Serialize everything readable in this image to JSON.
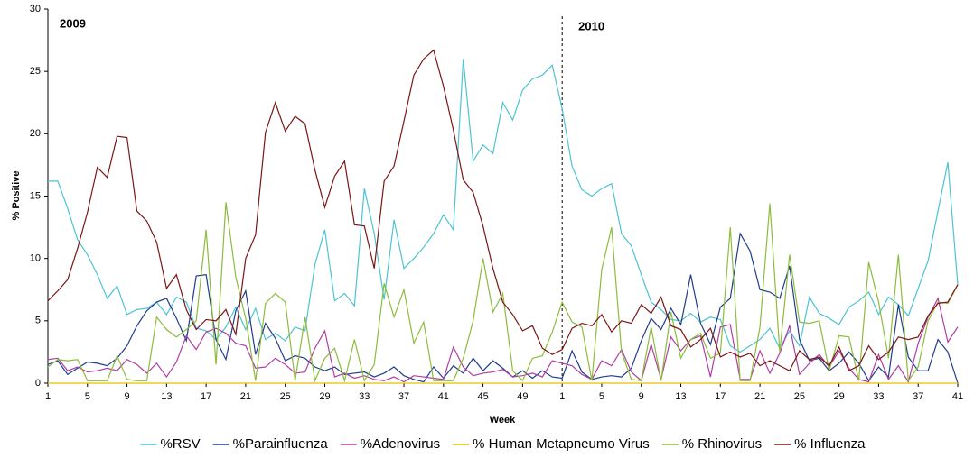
{
  "chart_data": {
    "type": "line",
    "ylabel": "% Positive",
    "xlabel": "Week",
    "annotations": [
      "2009",
      "2010"
    ],
    "categories": [
      1,
      null,
      null,
      null,
      5,
      null,
      null,
      null,
      9,
      null,
      null,
      null,
      13,
      null,
      null,
      null,
      17,
      null,
      null,
      null,
      21,
      null,
      null,
      null,
      25,
      null,
      null,
      null,
      29,
      null,
      null,
      null,
      33,
      null,
      null,
      null,
      37,
      null,
      null,
      null,
      41,
      null,
      null,
      null,
      45,
      null,
      null,
      null,
      49,
      null,
      null,
      null,
      1,
      null,
      null,
      null,
      5,
      null,
      null,
      null,
      9,
      null,
      null,
      null,
      13,
      null,
      null,
      null,
      17,
      null,
      null,
      null,
      21,
      null,
      null,
      null,
      25,
      null,
      null,
      null,
      29,
      null,
      null,
      null,
      33,
      null,
      null,
      null,
      37,
      null,
      null,
      null,
      41
    ],
    "ylim": [
      0,
      30
    ],
    "yticks": [
      0,
      5,
      10,
      15,
      20,
      25,
      30
    ],
    "grid": false,
    "series": [
      {
        "name": "%RSV",
        "color": "#4cc3d3",
        "values": [
          16.2,
          16.2,
          14,
          11.5,
          10.3,
          8.7,
          6.8,
          7.8,
          5.5,
          5.9,
          6.0,
          6.5,
          5.5,
          6.9,
          6.5,
          4.4,
          4.2,
          3.5,
          4.5,
          6.1,
          4.3,
          6.0,
          3.5,
          4.0,
          3.4,
          4.5,
          4.2,
          9.5,
          12.3,
          6.6,
          7.2,
          6.2,
          15.6,
          12.0,
          6.7,
          13.1,
          9.2,
          10.0,
          10.9,
          12.0,
          13.5,
          12.3,
          26.0,
          17.8,
          19.1,
          18.4,
          22.5,
          21.1,
          23.5,
          24.4,
          24.7,
          25.5,
          22.0,
          17.4,
          15.5,
          15.0,
          15.6,
          16.0,
          12.0,
          11.0,
          8.7,
          6.5,
          5.9,
          5.1,
          5.0,
          5.6,
          4.9,
          5.3,
          5.1,
          3.0,
          2.5,
          3.0,
          3.5,
          4.4,
          2.8,
          4.2,
          3.0,
          6.9,
          5.6,
          5.2,
          4.7,
          6.1,
          6.6,
          7.3,
          5.5,
          6.9,
          6.3,
          5.4,
          7.6,
          9.8,
          13.8,
          17.7,
          7.9
        ]
      },
      {
        "name": "%Parainfluenza",
        "color": "#1f3c8c",
        "values": [
          1.5,
          1.8,
          0.7,
          1.2,
          1.7,
          1.6,
          1.4,
          2.0,
          3.0,
          4.6,
          5.8,
          6.5,
          6.8,
          5.2,
          3.4,
          8.6,
          8.7,
          3.5,
          1.9,
          5.8,
          7.4,
          2.3,
          4.8,
          3.6,
          1.8,
          2.2,
          2.0,
          1.3,
          1.0,
          1.3,
          0.7,
          0.8,
          0.9,
          0.5,
          0.8,
          1.3,
          0.6,
          0.3,
          0.1,
          1.3,
          0.4,
          1.4,
          0.8,
          2.0,
          1.0,
          1.8,
          1.2,
          0.5,
          1.0,
          0.4,
          1.0,
          0.5,
          0.4,
          2.6,
          0.9,
          0.3,
          0.5,
          0.6,
          0.5,
          1.2,
          3.4,
          5.2,
          4.3,
          6.0,
          4.7,
          8.7,
          4.8,
          3.1,
          6.1,
          6.8,
          12.0,
          10.6,
          7.5,
          7.3,
          6.8,
          9.4,
          3.5,
          1.8,
          2.0,
          1.0,
          1.6,
          2.5,
          1.6,
          0.2,
          1.3,
          0.5,
          6.3,
          2.1,
          1.0,
          1.0,
          3.5,
          2.5,
          0
        ]
      },
      {
        "name": "%Adenovirus",
        "color": "#b03ea2",
        "values": [
          1.9,
          2.0,
          1.0,
          1.3,
          0.9,
          1.0,
          1.2,
          1.0,
          1.9,
          1.5,
          0.8,
          1.6,
          0.5,
          1.7,
          3.8,
          2.7,
          4.1,
          4.4,
          4.0,
          3.2,
          3.0,
          1.2,
          1.3,
          2.0,
          1.5,
          0.8,
          0.9,
          2.8,
          4.2,
          0.5,
          0.8,
          0.4,
          0.6,
          0.3,
          0.2,
          0.5,
          0.1,
          0.6,
          0.5,
          0.4,
          0.3,
          2.9,
          1.3,
          0.6,
          0.8,
          0.9,
          1.1,
          0.5,
          0.6,
          0.8,
          0.5,
          1.8,
          1.6,
          1.4,
          0.7,
          0.3,
          1.8,
          1.4,
          2.7,
          0.9,
          0.2,
          3.1,
          0.3,
          3.7,
          2.6,
          3.5,
          3.8,
          0.5,
          4.5,
          4.7,
          0.3,
          0.3,
          2.6,
          0.8,
          2.4,
          4.6,
          0.7,
          1.6,
          2.3,
          1.3,
          2.6,
          1.2,
          0.3,
          0.1,
          2.3,
          0.3,
          1.4,
          0.1,
          3.2,
          5.3,
          6.8,
          3.3,
          4.5
        ]
      },
      {
        "name": "% Human Metapneumo Virus",
        "color": "#e3c400",
        "values": [
          0,
          0,
          0,
          0,
          0,
          0,
          0,
          0,
          0,
          0,
          0,
          0,
          0,
          0,
          0,
          0,
          0,
          0,
          0,
          0,
          0,
          0,
          0,
          0,
          0,
          0,
          0,
          0,
          0,
          0,
          0,
          0,
          0,
          0,
          0,
          0,
          0,
          0,
          0,
          0,
          0,
          0,
          0,
          0,
          0,
          0,
          0,
          0,
          0,
          0,
          0,
          0,
          0,
          0,
          0,
          0,
          0,
          0,
          0,
          0,
          0,
          0,
          0,
          0,
          0,
          0,
          0,
          0,
          0,
          0,
          0,
          0,
          0,
          0,
          0,
          0,
          0,
          0,
          0,
          0,
          0,
          0,
          0,
          0,
          0,
          0,
          0,
          0,
          0,
          0,
          0,
          0,
          0
        ]
      },
      {
        "name": "% Rhinovirus",
        "color": "#8cbc3c",
        "values": [
          1.3,
          1.9,
          1.8,
          1.9,
          0.2,
          0.2,
          0.2,
          2.2,
          0.3,
          0.2,
          0.2,
          5.3,
          4.3,
          3.7,
          4.3,
          5.0,
          12.3,
          1.5,
          14.5,
          8.5,
          5.2,
          0.2,
          6.4,
          7.2,
          6.5,
          0.2,
          5.3,
          0.2,
          2.0,
          2.8,
          0.2,
          3.5,
          0.2,
          1.5,
          8.0,
          5.3,
          7.5,
          3.2,
          4.9,
          0.2,
          0.2,
          0.2,
          2.0,
          5.0,
          10.0,
          5.7,
          7.2,
          1.0,
          0.2,
          2.0,
          2.2,
          4.1,
          6.5,
          4.9,
          4.5,
          0.2,
          9.1,
          12.5,
          2.5,
          0.3,
          0.2,
          4.5,
          0.2,
          5.7,
          2.0,
          3.5,
          4.0,
          2.0,
          2.4,
          12.5,
          0.2,
          0.2,
          4.5,
          14.4,
          2.5,
          10.3,
          4.9,
          4.8,
          5.0,
          1.0,
          3.8,
          3.7,
          0.2,
          9.7,
          6.5,
          2.0,
          10.3,
          0.2,
          1.3,
          5.0,
          6.5,
          6.4,
          7.9
        ]
      },
      {
        "name": "% Influenza",
        "color": "#7a1515",
        "values": [
          6.6,
          7.4,
          8.3,
          10.8,
          13.7,
          17.3,
          16.5,
          19.8,
          19.7,
          13.8,
          13.0,
          11.3,
          7.6,
          8.7,
          5.9,
          4.3,
          5.1,
          5.0,
          5.9,
          3.9,
          10.0,
          11.9,
          20.1,
          22.5,
          20.2,
          21.4,
          20.8,
          17.1,
          14.1,
          16.6,
          17.8,
          12.7,
          12.6,
          9.2,
          16.2,
          17.4,
          21.0,
          24.7,
          26.0,
          26.7,
          23.8,
          20.3,
          16.3,
          15.3,
          12.6,
          9.2,
          6.5,
          5.5,
          4.2,
          4.6,
          2.8,
          2.3,
          2.7,
          4.4,
          4.8,
          4.6,
          5.5,
          4.1,
          5.0,
          4.8,
          6.3,
          5.6,
          6.9,
          4.6,
          4.3,
          2.9,
          3.5,
          4.4,
          2.1,
          2.5,
          2.1,
          2.4,
          1.4,
          1.8,
          1.4,
          1.0,
          2.6,
          1.9,
          2.1,
          1.4,
          2.9,
          1.0,
          1.4,
          3.0,
          1.9,
          2.5,
          3.7,
          3.5,
          3.7,
          5.4,
          6.4,
          6.5,
          7.9
        ]
      }
    ]
  }
}
